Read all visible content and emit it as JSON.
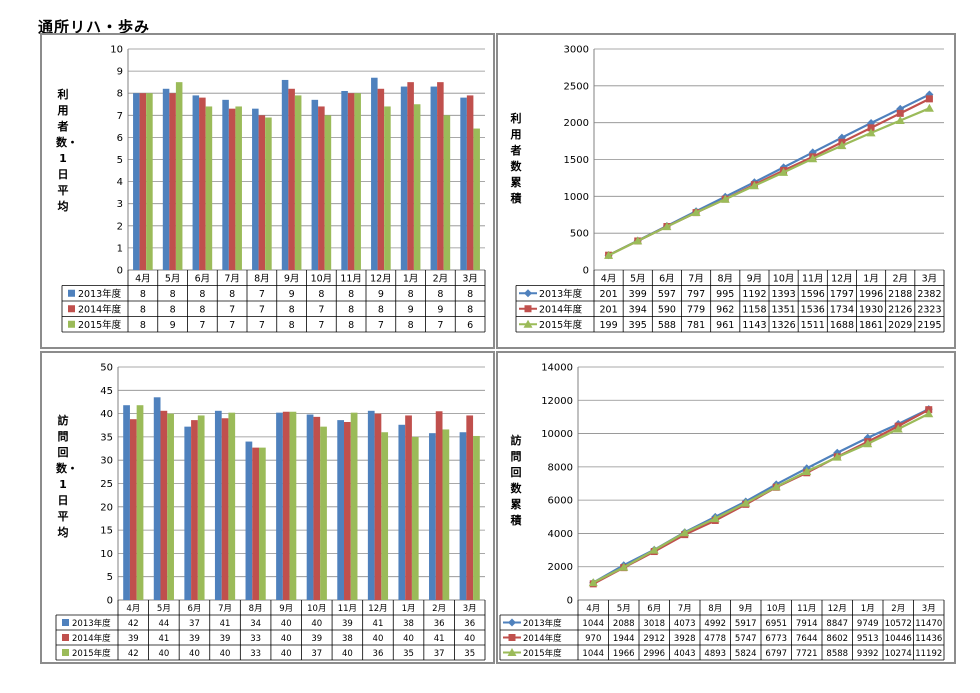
{
  "page_title": "通所リハ・歩み",
  "colors": {
    "s2013": "#4f81bd",
    "s2014": "#c0504d",
    "s2015": "#9bbb59",
    "grid": "#8c8c8c",
    "axis": "#808080"
  },
  "panels": [
    {
      "id": "users-daily",
      "ylabel": "利用者数・1日平均",
      "chart_data": {
        "type": "bar",
        "categories": [
          "4月",
          "5月",
          "6月",
          "7月",
          "8月",
          "9月",
          "10月",
          "11月",
          "12月",
          "1月",
          "2月",
          "3月"
        ],
        "ylim": [
          0,
          10
        ],
        "yticks": [
          0,
          1,
          2,
          3,
          4,
          5,
          6,
          7,
          8,
          9,
          10
        ],
        "grid": true,
        "legend": "data-table",
        "series": [
          {
            "name": "2013年度",
            "values": [
              8.0,
              8.2,
              7.9,
              7.7,
              7.3,
              8.6,
              7.7,
              8.1,
              8.7,
              8.3,
              8.3,
              7.8
            ],
            "labels": [
              "8",
              "8",
              "8",
              "8",
              "7",
              "9",
              "8",
              "8",
              "9",
              "8",
              "8",
              "8"
            ]
          },
          {
            "name": "2014年度",
            "values": [
              8.0,
              8.0,
              7.8,
              7.3,
              7.0,
              8.2,
              7.4,
              8.0,
              8.2,
              8.5,
              8.5,
              7.9
            ],
            "labels": [
              "8",
              "8",
              "8",
              "7",
              "7",
              "8",
              "7",
              "8",
              "8",
              "9",
              "9",
              "8"
            ]
          },
          {
            "name": "2015年度",
            "values": [
              8.0,
              8.5,
              7.4,
              7.4,
              6.9,
              7.9,
              7.0,
              8.0,
              7.4,
              7.5,
              7.0,
              6.4
            ],
            "labels": [
              "8",
              "9",
              "7",
              "7",
              "7",
              "8",
              "7",
              "8",
              "7",
              "8",
              "7",
              "6"
            ]
          }
        ]
      }
    },
    {
      "id": "users-cumulative",
      "ylabel": "利用者数　累積",
      "chart_data": {
        "type": "line",
        "categories": [
          "4月",
          "5月",
          "6月",
          "7月",
          "8月",
          "9月",
          "10月",
          "11月",
          "12月",
          "1月",
          "2月",
          "3月"
        ],
        "ylim": [
          0,
          3000
        ],
        "yticks": [
          0,
          500,
          1000,
          1500,
          2000,
          2500,
          3000
        ],
        "grid": true,
        "legend": "data-table",
        "series": [
          {
            "name": "2013年度",
            "marker": "diamond",
            "values": [
              201,
              399,
              597,
              797,
              995,
              1192,
              1393,
              1596,
              1797,
              1996,
              2188,
              2382
            ]
          },
          {
            "name": "2014年度",
            "marker": "square",
            "values": [
              201,
              394,
              590,
              779,
              962,
              1158,
              1351,
              1536,
              1734,
              1930,
              2126,
              2323
            ]
          },
          {
            "name": "2015年度",
            "marker": "triangle",
            "values": [
              199,
              395,
              588,
              781,
              961,
              1143,
              1326,
              1511,
              1688,
              1861,
              2029,
              2195
            ]
          }
        ]
      }
    },
    {
      "id": "visits-daily",
      "ylabel": "訪問回数・1日平均",
      "chart_data": {
        "type": "bar",
        "categories": [
          "4月",
          "5月",
          "6月",
          "7月",
          "8月",
          "9月",
          "10月",
          "11月",
          "12月",
          "1月",
          "2月",
          "3月"
        ],
        "ylim": [
          0,
          50
        ],
        "yticks": [
          0,
          5,
          10,
          15,
          20,
          25,
          30,
          35,
          40,
          45,
          50
        ],
        "grid": true,
        "legend": "data-table",
        "series": [
          {
            "name": "2013年度",
            "values": [
              41.8,
              43.5,
              37.2,
              40.6,
              34.0,
              40.2,
              39.8,
              38.6,
              40.6,
              37.6,
              35.8,
              36.0
            ],
            "labels": [
              "42",
              "44",
              "37",
              "41",
              "34",
              "40",
              "40",
              "39",
              "41",
              "38",
              "36",
              "36"
            ]
          },
          {
            "name": "2014年度",
            "values": [
              38.8,
              40.6,
              38.6,
              39.0,
              32.7,
              40.4,
              39.3,
              38.2,
              40.0,
              39.6,
              40.5,
              39.6
            ],
            "labels": [
              "39",
              "41",
              "39",
              "39",
              "33",
              "40",
              "39",
              "38",
              "40",
              "40",
              "41",
              "40"
            ]
          },
          {
            "name": "2015年度",
            "values": [
              41.8,
              40.0,
              39.6,
              40.2,
              32.7,
              40.4,
              37.2,
              40.2,
              36.0,
              35.0,
              36.6,
              35.2
            ],
            "labels": [
              "42",
              "40",
              "40",
              "40",
              "33",
              "40",
              "37",
              "40",
              "36",
              "35",
              "37",
              "35"
            ]
          }
        ]
      }
    },
    {
      "id": "visits-cumulative",
      "ylabel": "訪問回数　累積",
      "chart_data": {
        "type": "line",
        "categories": [
          "4月",
          "5月",
          "6月",
          "7月",
          "8月",
          "9月",
          "10月",
          "11月",
          "12月",
          "1月",
          "2月",
          "3月"
        ],
        "ylim": [
          0,
          14000
        ],
        "yticks": [
          0,
          2000,
          4000,
          6000,
          8000,
          10000,
          12000,
          14000
        ],
        "grid": true,
        "legend": "data-table",
        "series": [
          {
            "name": "2013年度",
            "marker": "diamond",
            "values": [
              1044,
              2088,
              3018,
              4073,
              4992,
              5917,
              6951,
              7914,
              8847,
              9749,
              10572,
              11470
            ]
          },
          {
            "name": "2014年度",
            "marker": "square",
            "values": [
              970,
              1944,
              2912,
              3928,
              4778,
              5747,
              6773,
              7644,
              8602,
              9513,
              10446,
              11436
            ]
          },
          {
            "name": "2015年度",
            "marker": "triangle",
            "values": [
              1044,
              1966,
              2996,
              4043,
              4893,
              5824,
              6797,
              7721,
              8588,
              9392,
              10274,
              11192
            ]
          }
        ]
      }
    }
  ]
}
